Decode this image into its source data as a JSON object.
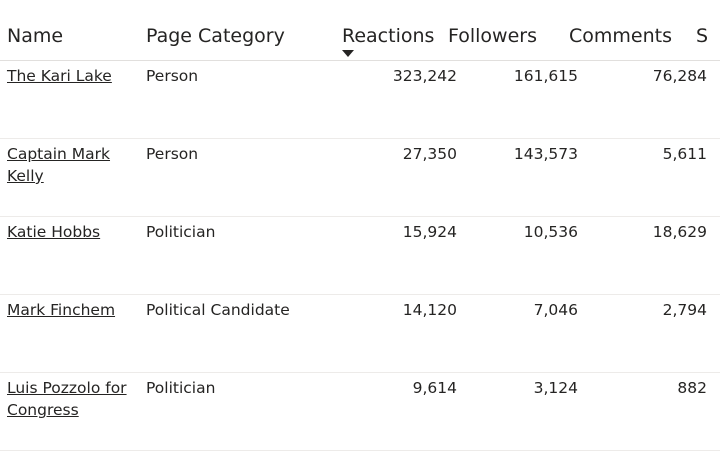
{
  "columns": {
    "name": "Name",
    "category": "Page Category",
    "reactions": "Reactions",
    "followers": "Followers",
    "comments": "Comments",
    "next": "S"
  },
  "rows": [
    {
      "name": "The Kari Lake",
      "category": "Person",
      "reactions": "323,242",
      "followers": "161,615",
      "comments": "76,284"
    },
    {
      "name": "Captain Mark Kelly",
      "category": "Person",
      "reactions": "27,350",
      "followers": "143,573",
      "comments": "5,611"
    },
    {
      "name": "Katie Hobbs",
      "category": "Politician",
      "reactions": "15,924",
      "followers": "10,536",
      "comments": "18,629"
    },
    {
      "name": "Mark Finchem",
      "category": "Political Candidate",
      "reactions": "14,120",
      "followers": "7,046",
      "comments": "2,794"
    },
    {
      "name": "Luis Pozzolo for Congress",
      "category": "Politician",
      "reactions": "9,614",
      "followers": "3,124",
      "comments": "882"
    }
  ],
  "sort": {
    "column": "reactions",
    "direction": "descending",
    "icon": "sort-descending-icon"
  }
}
